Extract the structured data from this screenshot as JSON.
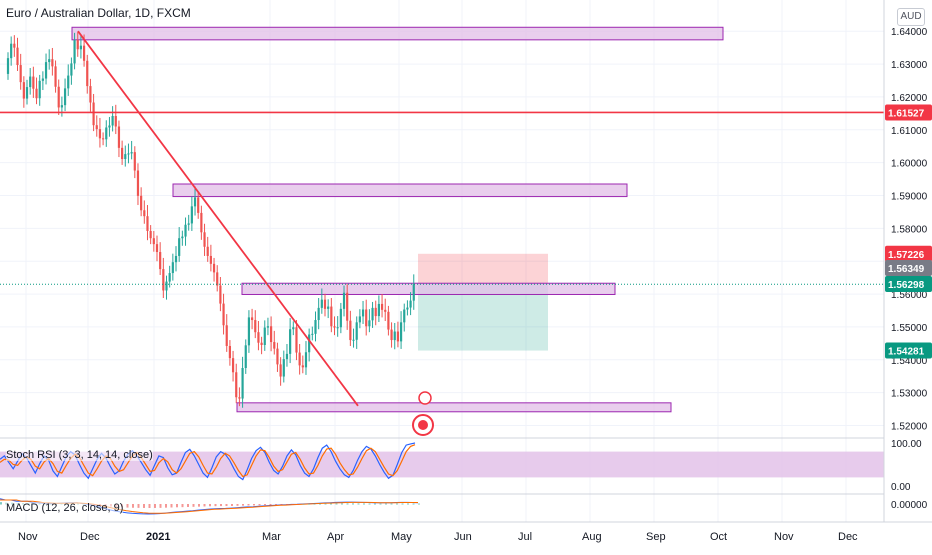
{
  "header": {
    "symbol_title": "Euro / Australian Dollar, 1D, FXCM",
    "currency": "AUD"
  },
  "chart_data": [
    {
      "type": "candlestick",
      "title": "Euro / Australian Dollar, 1D, FXCM",
      "ylim": [
        1.5165,
        1.6495
      ],
      "y_ticks": [
        "1.64000",
        "1.63000",
        "1.62000",
        "1.61000",
        "1.60000",
        "1.59000",
        "1.58000",
        "1.57000",
        "1.56000",
        "1.55000",
        "1.54000",
        "1.53000",
        "1.52000"
      ],
      "x_ticks": [
        "Nov",
        "Dec",
        "2021",
        "Mar",
        "Apr",
        "May",
        "Jun",
        "Jul",
        "Aug",
        "Sep",
        "Oct",
        "Nov",
        "Dec"
      ],
      "price_labels": [
        {
          "value": "1.61527",
          "color": "#f23645"
        },
        {
          "value": "1.57226",
          "color": "#f23645"
        },
        {
          "value": "1.56349",
          "color": "#787b86"
        },
        {
          "value": "1.56298",
          "color": "#089981"
        },
        {
          "value": "1.54281",
          "color": "#089981"
        }
      ],
      "resistance_line": 1.61527,
      "current_price": 1.56298,
      "zones": [
        {
          "low": 1.6392,
          "high": 1.6412
        },
        {
          "low": 1.5915,
          "high": 1.5935
        },
        {
          "low": 1.5617,
          "high": 1.5633
        },
        {
          "low": 1.526,
          "high": 1.5269
        }
      ],
      "trendline": [
        {
          "price": 1.64
        },
        {
          "price": 1.526
        }
      ],
      "short_position": {
        "entry": 1.56298,
        "stop": 1.57226,
        "target": 1.54281
      },
      "colors": {
        "up": "#26a69a",
        "down": "#ef5350",
        "zone_fill": "#e1bee7",
        "zone_border": "#9c27b0"
      }
    },
    {
      "type": "line",
      "title": "Stoch RSI (3, 3, 14, 14, close)",
      "ylim": [
        0,
        100
      ],
      "y_ticks": [
        "100.00",
        "0.00"
      ],
      "band": [
        20,
        80
      ],
      "series": [
        {
          "values": [
            62,
            70,
            55,
            40,
            58,
            75,
            66,
            48,
            30,
            52,
            70,
            60,
            35,
            22,
            45,
            68,
            80,
            72,
            50,
            30,
            18,
            40,
            62,
            76,
            65,
            45,
            28,
            35,
            58,
            74,
            82,
            70,
            55,
            38,
            25,
            48,
            70,
            66,
            42,
            26,
            30,
            55,
            78,
            85,
            70,
            50,
            30,
            20,
            42,
            68,
            80,
            74,
            60,
            40,
            22,
            15,
            38,
            64,
            82,
            90,
            78,
            55,
            36,
            28,
            46,
            70,
            84,
            72,
            48,
            30,
            22,
            40,
            66,
            88,
            95,
            80,
            58,
            40,
            26,
            20,
            36,
            60,
            80,
            92,
            86,
            70,
            50,
            32,
            18,
            25,
            50,
            78,
            95,
            98,
            100
          ]
        },
        {
          "values": [
            55,
            62,
            60,
            50,
            48,
            60,
            68,
            62,
            46,
            40,
            56,
            64,
            52,
            34,
            30,
            48,
            64,
            74,
            66,
            48,
            30,
            24,
            40,
            58,
            70,
            64,
            46,
            34,
            38,
            54,
            70,
            78,
            66,
            50,
            34,
            36,
            54,
            64,
            56,
            38,
            30,
            40,
            58,
            76,
            80,
            68,
            48,
            30,
            28,
            44,
            64,
            76,
            70,
            54,
            36,
            22,
            26,
            48,
            70,
            84,
            82,
            66,
            46,
            34,
            38,
            56,
            74,
            78,
            62,
            42,
            28,
            30,
            48,
            70,
            86,
            88,
            74,
            54,
            38,
            26,
            28,
            44,
            64,
            82,
            88,
            80,
            62,
            44,
            28,
            24,
            36,
            58,
            80,
            92,
            96
          ]
        }
      ]
    },
    {
      "type": "histogram",
      "title": "MACD (12, 26, close, 9)",
      "y_ticks": [
        "0.00000"
      ],
      "ylim": [
        -0.012,
        0.006
      ],
      "series": [
        {
          "values": [
            0.004,
            0.003,
            0.003,
            0.002,
            0.002,
            0.002,
            0.001,
            0.001,
            0.0005,
            0.0002,
            0.0003,
            0.0005,
            0.0008,
            0.001,
            0.0009,
            0.0004,
            -0.0003,
            -0.0012,
            -0.0022,
            -0.0033,
            -0.0044,
            -0.0053,
            -0.006,
            -0.0066,
            -0.007,
            -0.0072,
            -0.0074,
            -0.0075,
            -0.0074,
            -0.0072,
            -0.0068,
            -0.0064,
            -0.006,
            -0.0057,
            -0.0053,
            -0.005,
            -0.0046,
            -0.0042,
            -0.0038,
            -0.0036,
            -0.0034,
            -0.0033,
            -0.0031,
            -0.0028,
            -0.0025,
            -0.0022,
            -0.002,
            -0.0017,
            -0.0014,
            -0.0011,
            -0.0009,
            -0.0007,
            -0.0005,
            -0.0003,
            -0.0002,
            0,
            0.0002,
            0.0004,
            0.0006,
            0.0008,
            0.001,
            0.0012,
            0.0013,
            0.0014,
            0.0014,
            0.0013,
            0.0012,
            0.0011,
            0.001,
            0.0009,
            0.0009,
            0.001,
            0.0011,
            0.0012,
            0.0012,
            0.0011,
            0.001
          ]
        },
        {
          "values": [
            0.003,
            0.003,
            0.003,
            0.003,
            0.002,
            0.002,
            0.002,
            0.0015,
            0.001,
            0.0008,
            0.0006,
            0.0006,
            0.0006,
            0.0007,
            0.0008,
            0.0006,
            0.0003,
            -0.0002,
            -0.0009,
            -0.0017,
            -0.0026,
            -0.0035,
            -0.0043,
            -0.005,
            -0.0056,
            -0.0061,
            -0.0065,
            -0.0068,
            -0.007,
            -0.007,
            -0.0069,
            -0.0067,
            -0.0064,
            -0.0061,
            -0.0058,
            -0.0054,
            -0.005,
            -0.0047,
            -0.0043,
            -0.004,
            -0.0038,
            -0.0036,
            -0.0034,
            -0.0032,
            -0.0029,
            -0.0026,
            -0.0024,
            -0.0021,
            -0.0018,
            -0.0015,
            -0.0012,
            -0.001,
            -0.0008,
            -0.0006,
            -0.0004,
            -0.0002,
            0,
            0.0002,
            0.0004,
            0.0005,
            0.0007,
            0.0008,
            0.001,
            0.0011,
            0.0012,
            0.0012,
            0.0012,
            0.0012,
            0.0011,
            0.001,
            0.001,
            0.001,
            0.001,
            0.0011,
            0.0011,
            0.0011,
            0.0011
          ]
        }
      ]
    }
  ],
  "bars": {
    "opens": [
      1.627,
      1.6318,
      1.6362,
      1.635,
      1.6297,
      1.6245,
      1.6195,
      1.623,
      1.6262,
      1.6225,
      1.6196,
      1.6249,
      1.6256,
      1.6306,
      1.6315,
      1.6293,
      1.6231,
      1.6168,
      1.6175,
      1.6226,
      1.6265,
      1.6302,
      1.6373,
      1.6345,
      1.6356,
      1.631,
      1.6233,
      1.6183,
      1.6114,
      1.6102,
      1.6074,
      1.6071,
      1.6107,
      1.6113,
      1.6142,
      1.611,
      1.6045,
      1.6011,
      1.6026,
      1.6028,
      1.6032,
      1.5976,
      1.5899,
      1.5855,
      1.5837,
      1.5792,
      1.577,
      1.5752,
      1.5728,
      1.5676,
      1.5611,
      1.5638,
      1.5664,
      1.5697,
      1.5716,
      1.577,
      1.5775,
      1.5811,
      1.5815,
      1.5867,
      1.5894,
      1.5847,
      1.5788,
      1.5744,
      1.5716,
      1.5692,
      1.5666,
      1.5626,
      1.5571,
      1.5505,
      1.5442,
      1.5405,
      1.5362,
      1.5286,
      1.5282,
      1.5375,
      1.5444,
      1.5529,
      1.5521,
      1.5484,
      1.5452,
      1.5445,
      1.5498,
      1.5502,
      1.5454,
      1.5434,
      1.5386,
      1.5349,
      1.5402,
      1.5418,
      1.5493,
      1.5499,
      1.5422,
      1.5383,
      1.5377,
      1.5423,
      1.5477,
      1.5479,
      1.5521,
      1.5558,
      1.5583,
      1.5555,
      1.5562,
      1.5502,
      1.5498,
      1.5499,
      1.5555,
      1.5604,
      1.5519,
      1.546,
      1.5461,
      1.5514,
      1.5532,
      1.5553,
      1.5502,
      1.552,
      1.5558,
      1.5533,
      1.557,
      1.5552,
      1.5546,
      1.5492,
      1.546,
      1.5486,
      1.5456,
      1.5514,
      1.5553,
      1.5559,
      1.558
    ],
    "closes": [
      1.6318,
      1.6362,
      1.635,
      1.6297,
      1.6245,
      1.6195,
      1.623,
      1.6262,
      1.6225,
      1.6196,
      1.6249,
      1.6256,
      1.6306,
      1.6315,
      1.6293,
      1.6231,
      1.6168,
      1.6175,
      1.6226,
      1.6265,
      1.6302,
      1.6373,
      1.6345,
      1.6356,
      1.631,
      1.6233,
      1.6183,
      1.6114,
      1.6102,
      1.6074,
      1.6071,
      1.6107,
      1.6113,
      1.6142,
      1.611,
      1.6045,
      1.6011,
      1.6026,
      1.6028,
      1.6032,
      1.5976,
      1.5899,
      1.5855,
      1.5837,
      1.5792,
      1.577,
      1.5752,
      1.5728,
      1.5676,
      1.5611,
      1.5638,
      1.5664,
      1.5697,
      1.5716,
      1.577,
      1.5775,
      1.5811,
      1.5815,
      1.5867,
      1.5894,
      1.5847,
      1.5788,
      1.5744,
      1.5716,
      1.5692,
      1.5666,
      1.5626,
      1.5571,
      1.5505,
      1.5442,
      1.5405,
      1.5362,
      1.5286,
      1.5282,
      1.5375,
      1.5444,
      1.5529,
      1.5521,
      1.5484,
      1.5452,
      1.5445,
      1.5498,
      1.5502,
      1.5454,
      1.5434,
      1.5386,
      1.5349,
      1.5402,
      1.5418,
      1.5493,
      1.5499,
      1.5422,
      1.5383,
      1.5377,
      1.5423,
      1.5477,
      1.5479,
      1.5521,
      1.5558,
      1.5583,
      1.5555,
      1.5562,
      1.5502,
      1.5498,
      1.5499,
      1.5555,
      1.5604,
      1.5519,
      1.546,
      1.5461,
      1.5514,
      1.5532,
      1.5553,
      1.5502,
      1.552,
      1.5558,
      1.5533,
      1.557,
      1.5552,
      1.5546,
      1.5492,
      1.546,
      1.5486,
      1.5456,
      1.5514,
      1.5553,
      1.5559,
      1.558,
      1.563
    ]
  }
}
